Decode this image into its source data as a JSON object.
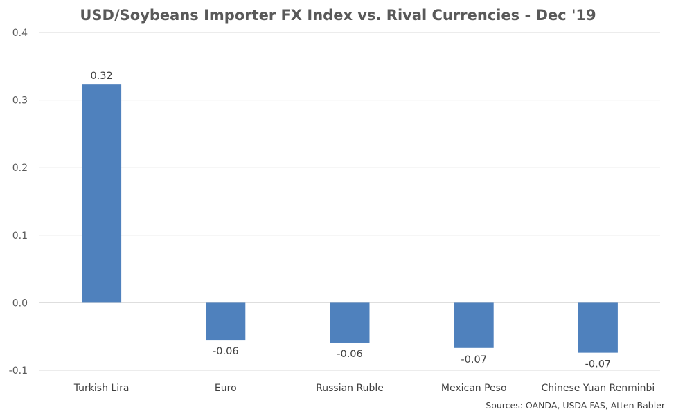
{
  "chart_data": {
    "type": "bar",
    "title": "USD/Soybeans Importer FX Index vs. Rival Currencies - Dec '19",
    "categories": [
      "Turkish Lira",
      "Euro",
      "Russian Ruble",
      "Mexican Peso",
      "Chinese Yuan Renminbi"
    ],
    "values": [
      0.323,
      -0.055,
      -0.059,
      -0.067,
      -0.074
    ],
    "data_labels": [
      "0.32",
      "-0.06",
      "-0.06",
      "-0.07",
      "-0.07"
    ],
    "ylim": [
      -0.1,
      0.4
    ],
    "yticks": [
      -0.1,
      0.0,
      0.1,
      0.2,
      0.3,
      0.4
    ],
    "ytick_labels": [
      "-0.1",
      "0.0",
      "0.1",
      "0.2",
      "0.3",
      "0.4"
    ],
    "grid": true,
    "legend": "none",
    "bar_color": "#4f81bd",
    "source": "Sources: OANDA, USDA FAS, Atten Babler"
  }
}
